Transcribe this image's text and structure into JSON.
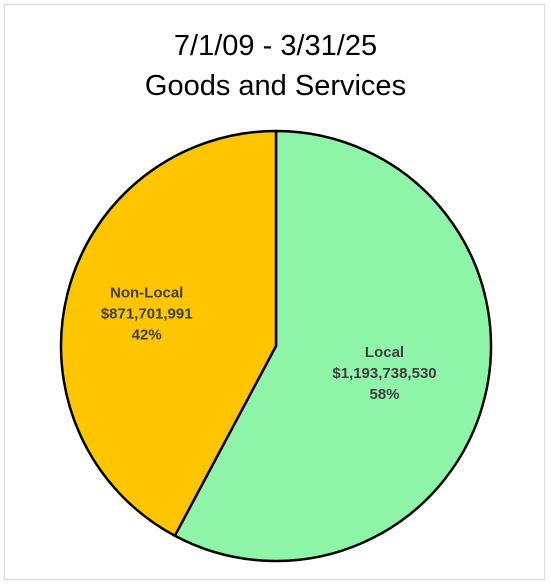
{
  "chart_data": {
    "type": "pie",
    "title": [
      "7/1/09 - 3/31/25",
      "Goods and Services"
    ],
    "start_angle_deg": 0,
    "direction": "clockwise",
    "slices": [
      {
        "category": "Local",
        "value": 1193738530,
        "value_label": "$1,193,738,530",
        "percent_label": "58%",
        "color": "#8ef5a8"
      },
      {
        "category": "Non-Local",
        "value": 871701991,
        "value_label": "$871,701,991",
        "percent_label": "42%",
        "color": "#ffc600"
      }
    ],
    "legend": "none"
  }
}
